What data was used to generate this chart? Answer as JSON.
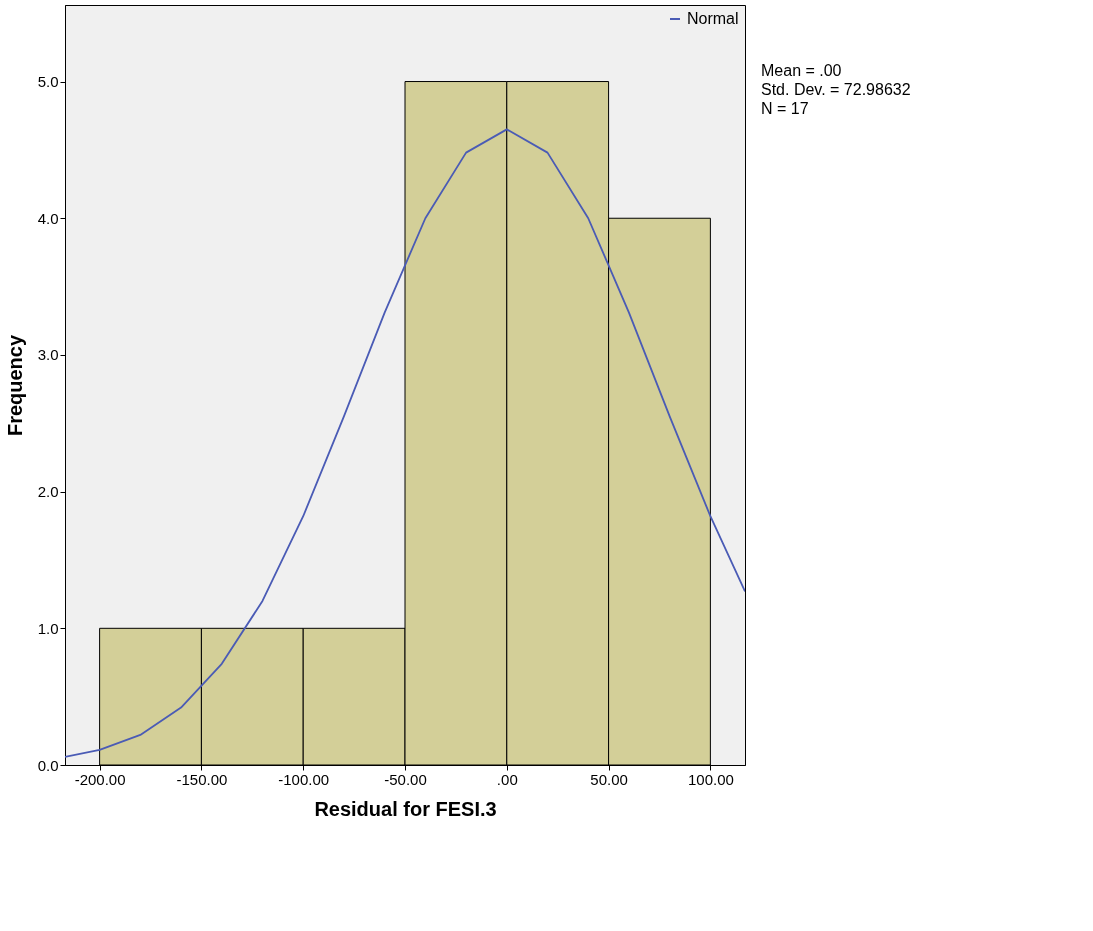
{
  "chart_data": {
    "type": "histogram",
    "xlabel": "Residual for FESI.3",
    "ylabel": "Frequency",
    "bins": [
      -200,
      -150,
      -100,
      -50,
      0,
      50,
      100
    ],
    "values": [
      1,
      1,
      1,
      5,
      5,
      4
    ],
    "color": "#d3cf98",
    "series": [
      {
        "type": "line",
        "name": "Normal",
        "color": "#4a5bb5",
        "x": [
          -217,
          -200,
          -180,
          -160,
          -140,
          -120,
          -100,
          -80,
          -60,
          -40,
          -20,
          0,
          20,
          40,
          60,
          80,
          100,
          117
        ],
        "values": [
          0.06,
          0.11,
          0.22,
          0.42,
          0.74,
          1.2,
          1.82,
          2.55,
          3.31,
          4.0,
          4.48,
          4.65,
          4.48,
          4.0,
          3.31,
          2.55,
          1.82,
          1.27
        ]
      }
    ],
    "xlim": [
      -217,
      117
    ],
    "ylim": [
      0,
      5.56
    ],
    "xticks": [
      {
        "value": -200,
        "label": "-200.00"
      },
      {
        "value": -150,
        "label": "-150.00"
      },
      {
        "value": -100,
        "label": "-100.00"
      },
      {
        "value": -50,
        "label": "-50.00"
      },
      {
        "value": 0,
        "label": ".00"
      },
      {
        "value": 50,
        "label": "50.00"
      },
      {
        "value": 100,
        "label": "100.00"
      }
    ],
    "yticks": [
      {
        "value": 0,
        "label": "0.0"
      },
      {
        "value": 1,
        "label": "1.0"
      },
      {
        "value": 2,
        "label": "2.0"
      },
      {
        "value": 3,
        "label": "3.0"
      },
      {
        "value": 4,
        "label": "4.0"
      },
      {
        "value": 5,
        "label": "5.0"
      }
    ],
    "annotations": [
      "Mean = .00",
      "Std. Dev. = 72.98632",
      "N = 17"
    ],
    "legend": "top right",
    "grid": false,
    "marker": "none",
    "line_style": "solid"
  }
}
